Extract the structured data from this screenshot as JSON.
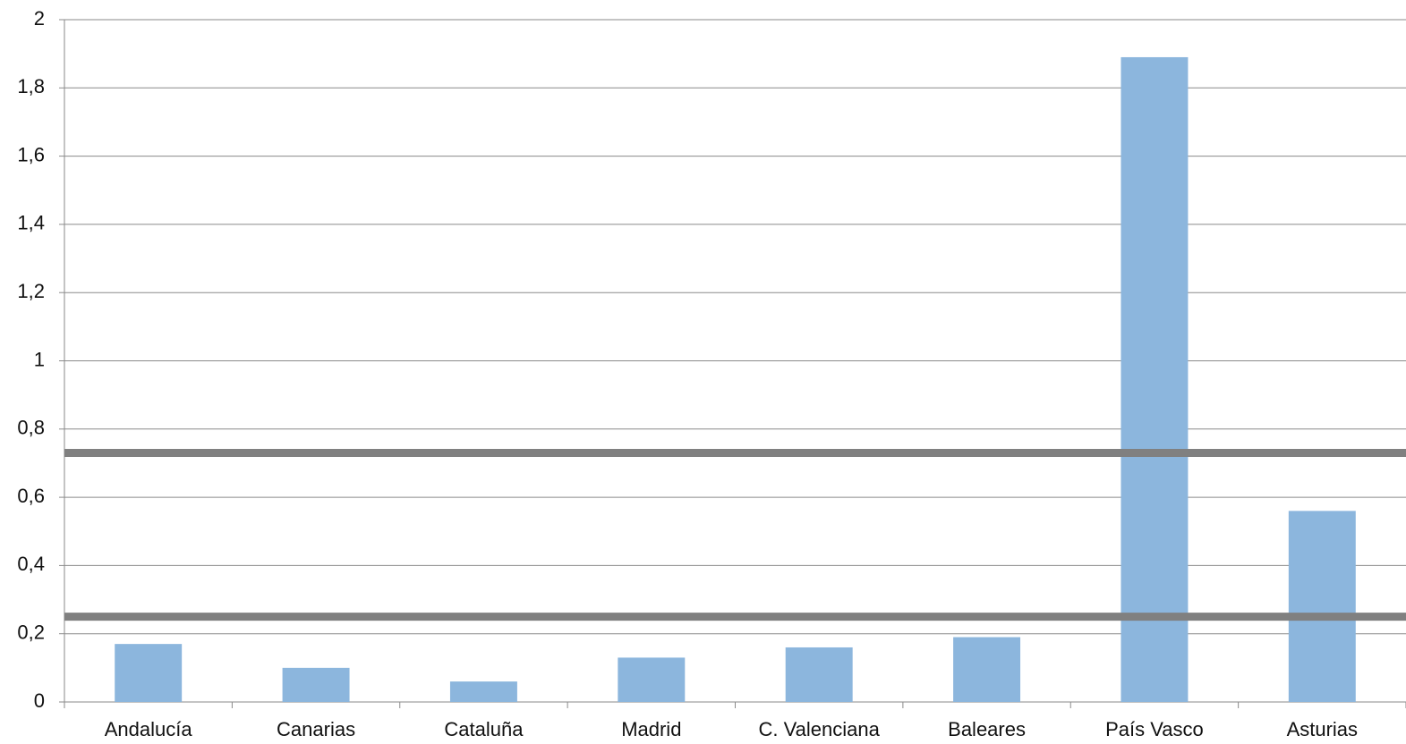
{
  "chart_data": {
    "type": "bar",
    "categories": [
      "Andalucía",
      "Canarias",
      "Cataluña",
      "Madrid",
      "C. Valenciana",
      "Baleares",
      "País Vasco",
      "Asturias"
    ],
    "values": [
      0.17,
      0.1,
      0.06,
      0.13,
      0.16,
      0.19,
      1.89,
      0.56
    ],
    "color": "#8cb6dd",
    "ylim": [
      0,
      2
    ],
    "yticks": [
      0,
      {
        "value": 0.2,
        "label": "0,2"
      },
      {
        "value": 0.4,
        "label": "0,4"
      },
      {
        "value": 0.6,
        "label": "0,6"
      },
      {
        "value": 0.8,
        "label": "0,8"
      },
      1,
      {
        "value": 1.2,
        "label": "1,2"
      },
      {
        "value": 1.4,
        "label": "1,4"
      },
      {
        "value": 1.6,
        "label": "1,6"
      },
      {
        "value": 1.8,
        "label": "1,8"
      },
      2
    ],
    "grid": true,
    "reference_lines": [
      0.73,
      0.25
    ],
    "reference_color": "#808080"
  }
}
